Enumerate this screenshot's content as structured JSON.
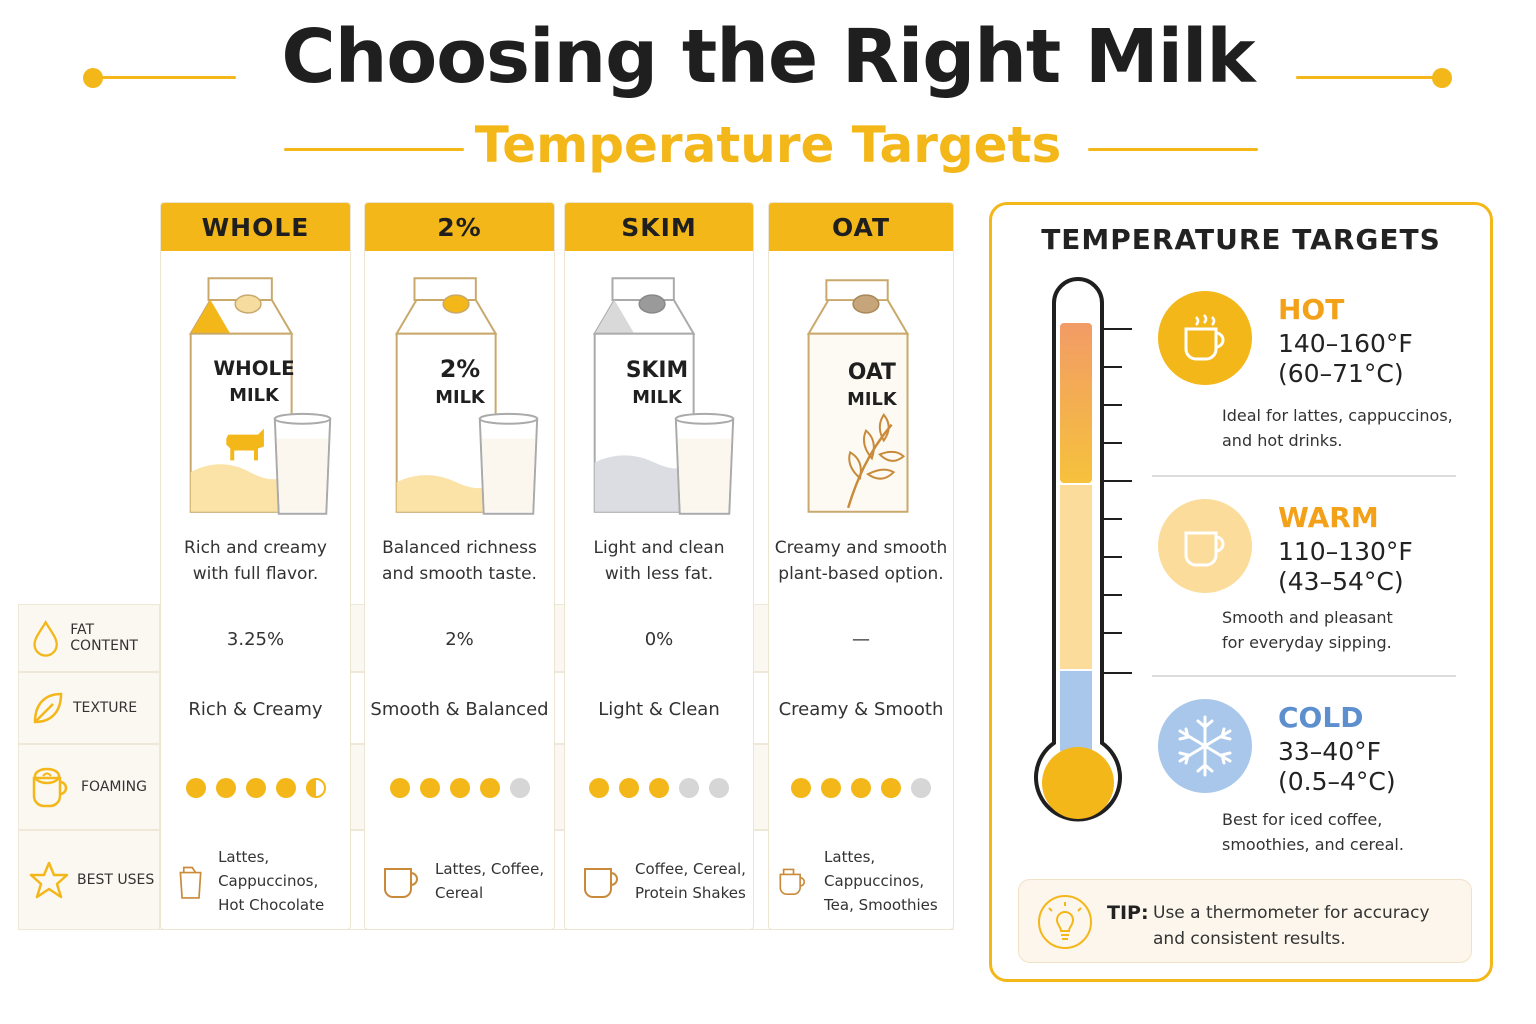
{
  "header": {
    "title": "Choosing the Right Milk",
    "subtitle": "Temperature Targets"
  },
  "colors": {
    "accent": "#f4b71a",
    "hot": "#f4b71a",
    "warm": "#fbdc9a",
    "cold": "#a9c7ea"
  },
  "milks": [
    {
      "name": "WHOLE",
      "carton_line1": "WHOLE",
      "carton_line2": "MILK",
      "desc1": "Rich and creamy",
      "desc2": "with full flavor.",
      "fat": "3.25%",
      "texture": "Rich & Creamy",
      "foaming": 4.5,
      "uses1": "Lattes, Cappuccinos,",
      "uses2": "Hot Chocolate",
      "icon": "cow-icon"
    },
    {
      "name": "2%",
      "carton_line1": "2%",
      "carton_line2": "MILK",
      "desc1": "Balanced richness",
      "desc2": "and smooth taste.",
      "fat": "2%",
      "texture": "Smooth & Balanced",
      "foaming": 4,
      "uses1": "Lattes, Coffee,",
      "uses2": "Cereal",
      "icon": ""
    },
    {
      "name": "SKIM",
      "carton_line1": "SKIM",
      "carton_line2": "MILK",
      "desc1": "Light and clean",
      "desc2": "with less fat.",
      "fat": "0%",
      "texture": "Light & Clean",
      "foaming": 3,
      "uses1": "Coffee, Cereal,",
      "uses2": "Protein Shakes",
      "icon": ""
    },
    {
      "name": "OAT",
      "carton_line1": "OAT",
      "carton_line2": "MILK",
      "desc1": "Creamy and smooth",
      "desc2": "plant-based option.",
      "fat": "—",
      "texture": "Creamy & Smooth",
      "foaming": 4,
      "uses1": "Lattes, Cappuccinos,",
      "uses2": "Tea, Smoothies",
      "icon": "oat-leaf-icon"
    }
  ],
  "rows": {
    "fat_label": "FAT CONTENT",
    "texture_label": "TEXTURE",
    "foaming_label": "FOAMING",
    "uses_label": "BEST USES"
  },
  "panel": {
    "title": "TEMPERATURE TARGETS",
    "hot": {
      "name": "HOT",
      "f": "140–160°F",
      "c": "(60–71°C)",
      "note1": "Ideal for lattes, cappuccinos,",
      "note2": "and hot drinks."
    },
    "warm": {
      "name": "WARM",
      "f": "110–130°F",
      "c": "(43–54°C)",
      "note1": "Smooth and pleasant",
      "note2": "for everyday sipping."
    },
    "cold": {
      "name": "COLD",
      "f": "33–40°F",
      "c": "(0.5–4°C)",
      "note1": "Best for iced coffee,",
      "note2": "smoothies, and cereal."
    },
    "tip_label": "TIP:",
    "tip1": "Use a thermometer for accuracy",
    "tip2": "and consistent results."
  }
}
